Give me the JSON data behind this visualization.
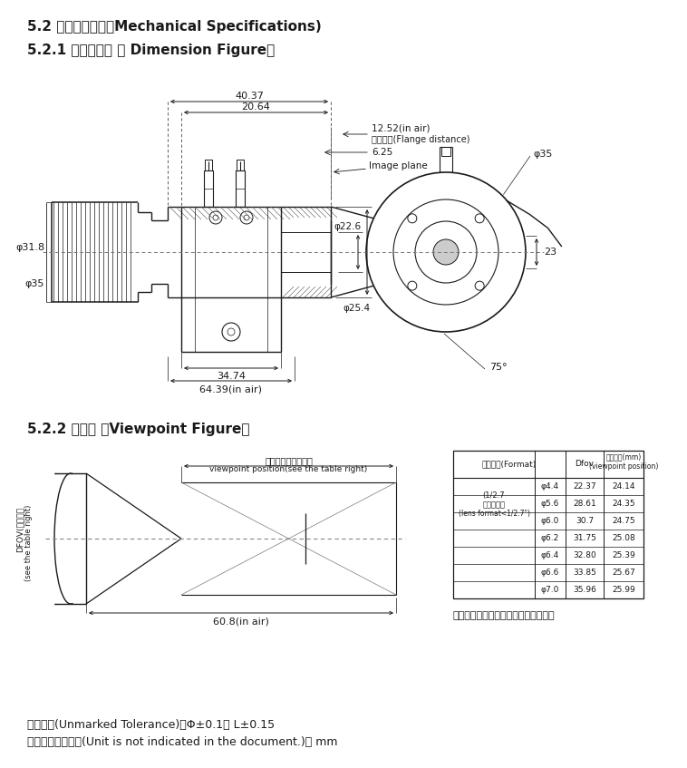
{
  "title1": "5.2 机构参数规格（Mechanical Specifications)",
  "title2": "5.2.1 外形尺廸图 （ Dimension Figure）",
  "title3": "5.2.2 视点图 （Viewpoint Figure）",
  "footer1": "未注公差(Unmarked Tolerance)：Φ±0.1， L±0.15",
  "footer2": "本规格书未注单位(Unit is not indicated in the document.)： mm",
  "note": "注：次广角端为光线有效径最大的焦距",
  "bg_color": "#ffffff",
  "line_color": "#1a1a1a",
  "dim_color": "#1a1a1a",
  "dim_40_37": "40.37",
  "dim_20_64": "20.64",
  "dim_12_52": "12.52(in air)",
  "dim_flange": "法兰后焦(Flange distance)",
  "dim_6_25": "6.25",
  "dim_image_plane": "Image plane",
  "dim_35_top": "φ35",
  "dim_23": "23",
  "dim_31_8": "φ31.8",
  "dim_35_left": "φ35",
  "dim_22_6": "φ22.6",
  "dim_25_4": "φ25.4",
  "dim_34_74": "34.74",
  "dim_64_39": "64.39(in air)",
  "dim_75": "75°",
  "viewpoint_label1": "视点位置（见表格）",
  "viewpoint_label2": "viewpoint position(see the table right)",
  "dfov_label1": "DFOV(见表格）",
  "dfov_label2": "(see the table right)",
  "dim_60_8": "60.8(in air)",
  "tbl_col0_header": "像面大小(Format)",
  "tbl_col1_header": "Dfov",
  "tbl_col2_header": "视点位置(mm)\n(viewpoint position)",
  "tbl_r0c0a": "(1/2.7",
  "tbl_r0c0b": "以下镜头）",
  "tbl_r0c0c": "(lens format<1/2.7\")",
  "tbl_rows": [
    [
      "φ4.4",
      "22.37",
      "24.14"
    ],
    [
      "φ5.6",
      "28.61",
      "24.35"
    ],
    [
      "φ6.0",
      "30.7",
      "24.75"
    ],
    [
      "φ6.2",
      "31.75",
      "25.08"
    ],
    [
      "φ6.4",
      "32.80",
      "25.39"
    ],
    [
      "φ6.6",
      "33.85",
      "25.67"
    ],
    [
      "φ7.0",
      "35.96",
      "25.99"
    ]
  ]
}
